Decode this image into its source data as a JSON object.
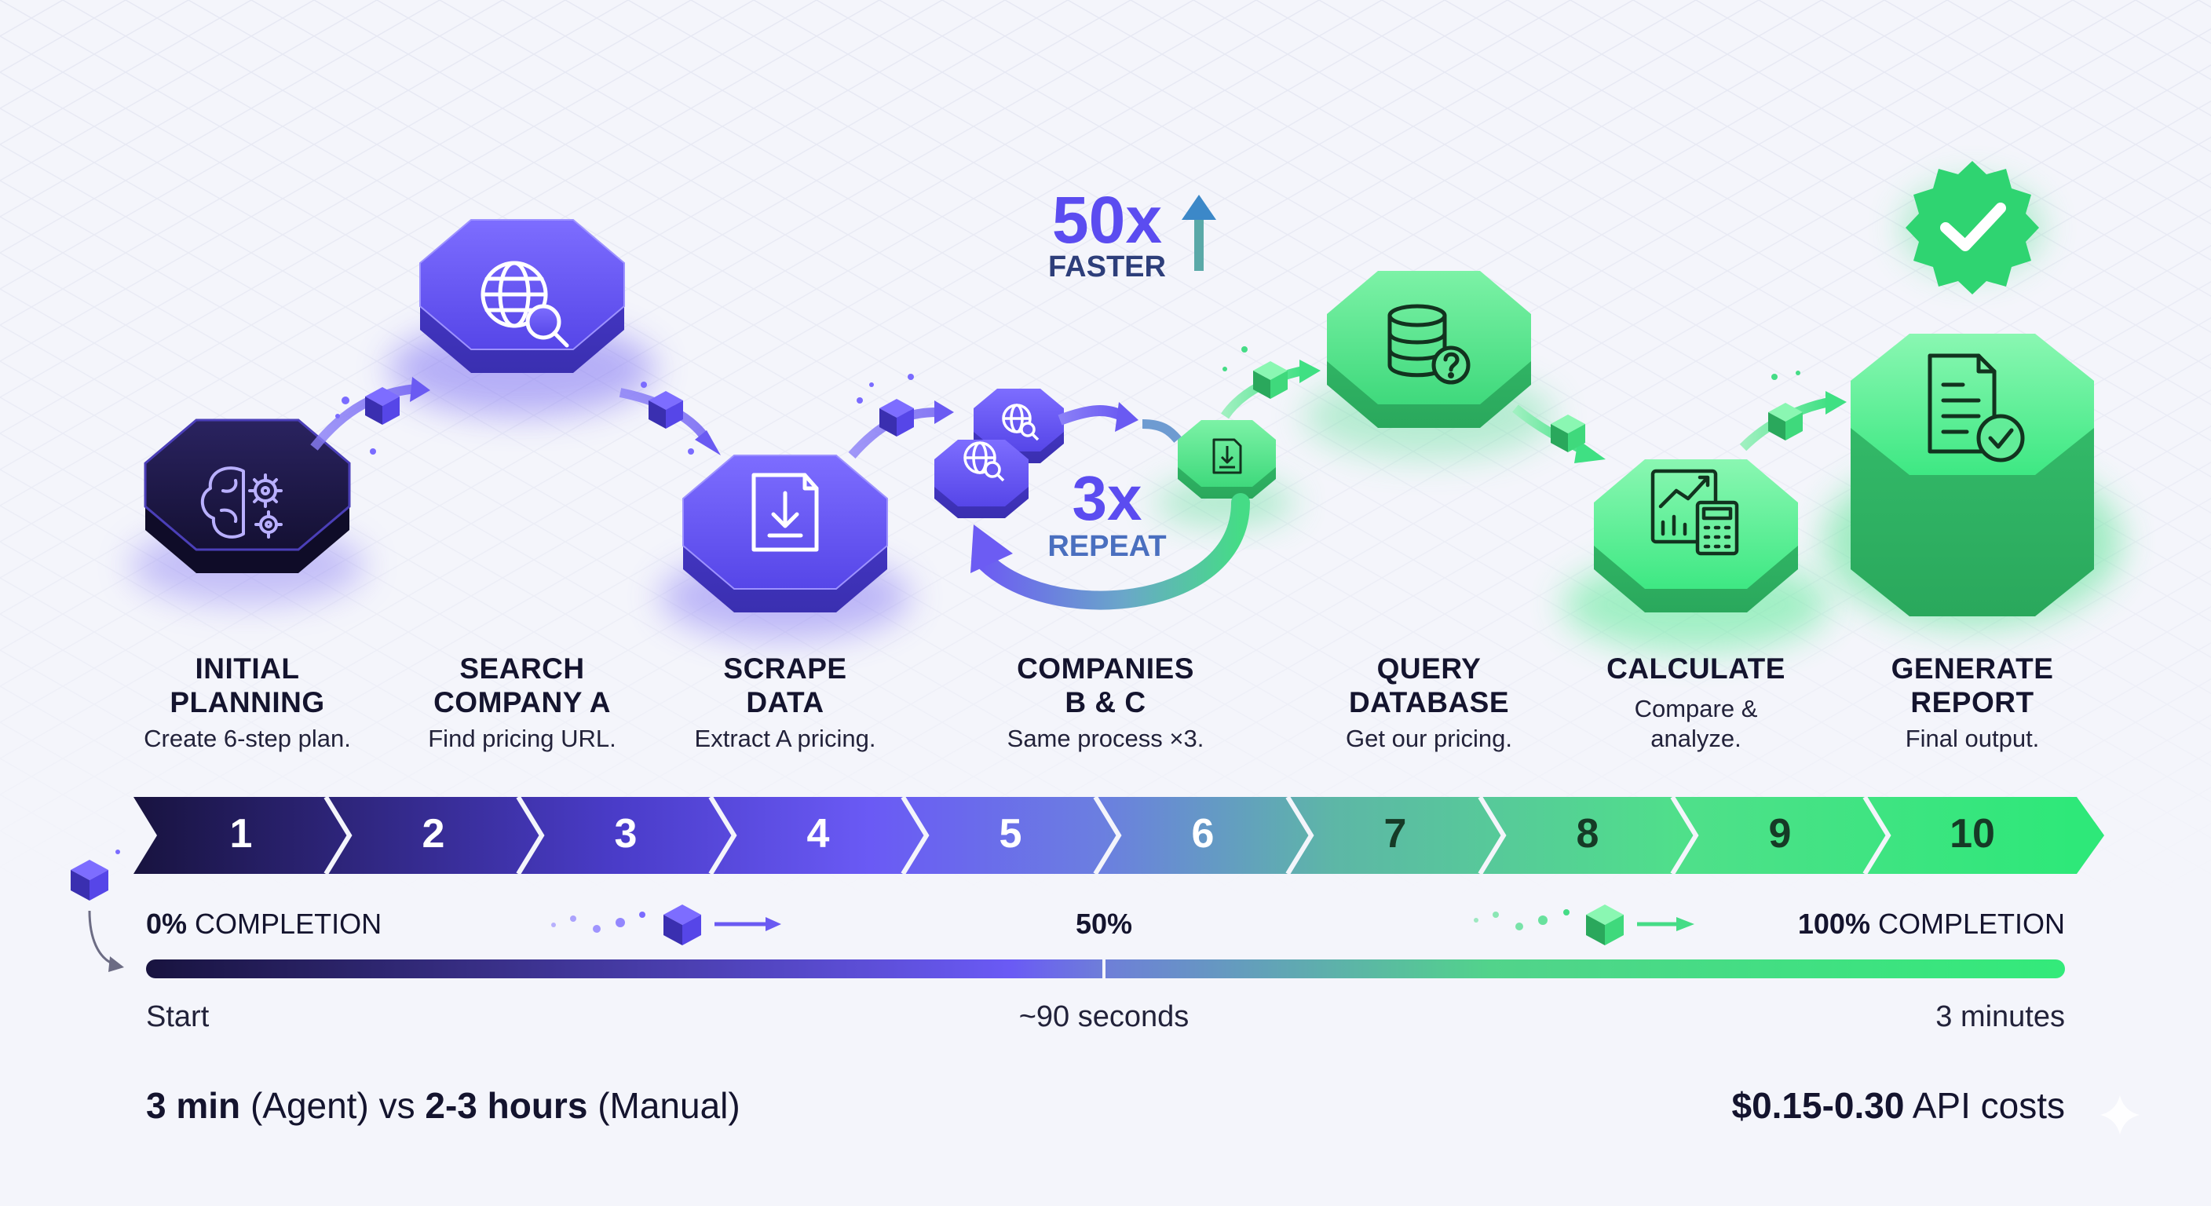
{
  "speedup": {
    "value": "50x",
    "label": "FASTER"
  },
  "repeat": {
    "value": "3x",
    "label": "REPEAT"
  },
  "steps": [
    {
      "title_line1": "INITIAL",
      "title_line2": "PLANNING",
      "subtitle": "Create 6-step plan.",
      "icon": "brain-gears-icon",
      "color": "#1e1848"
    },
    {
      "title_line1": "SEARCH",
      "title_line2": "COMPANY A",
      "subtitle": "Find pricing URL.",
      "icon": "globe-search-icon",
      "color": "#5b4cf0"
    },
    {
      "title_line1": "SCRAPE",
      "title_line2": "DATA",
      "subtitle": "Extract A pricing.",
      "icon": "file-download-icon",
      "color": "#6a5af7"
    },
    {
      "title_line1": "COMPANIES",
      "title_line2": "B & C",
      "subtitle": "Same process ×3.",
      "icon": "globe-search-icon",
      "color": "#5a58ee"
    },
    {
      "title_line1": "QUERY",
      "title_line2": "DATABASE",
      "subtitle": "Get our pricing.",
      "icon": "database-question-icon",
      "color": "#4fd27f"
    },
    {
      "title_line1": "CALCULATE",
      "title_line2": "",
      "subtitle_line1": "Compare &",
      "subtitle_line2": "analyze.",
      "icon": "calculator-chart-icon",
      "color": "#3ee07d"
    },
    {
      "title_line1": "GENERATE",
      "title_line2": "REPORT",
      "subtitle": "Final output.",
      "icon": "report-check-icon",
      "color": "#2ee478"
    }
  ],
  "timeline": [
    "1",
    "2",
    "3",
    "4",
    "5",
    "6",
    "7",
    "8",
    "9",
    "10"
  ],
  "progress": {
    "start_pct": "0%",
    "start_word": "COMPLETION",
    "mid_pct": "50%",
    "end_pct": "100%",
    "end_word": "COMPLETION",
    "time_start": "Start",
    "time_mid": "~90 seconds",
    "time_end": "3 minutes",
    "value": 1.0
  },
  "footer": {
    "agent_time": "3 min",
    "agent_word": "(Agent)",
    "vs": "vs",
    "manual_time": "2-3 hours",
    "manual_word": "(Manual)",
    "cost": "$0.15-0.30",
    "cost_word": "API costs"
  },
  "colors": {
    "navy": "#1a1540",
    "purple": "#5b4cf0",
    "violet": "#7a6bff",
    "teal": "#5aa9a8",
    "green": "#33e07a",
    "check_green": "#35d97a"
  }
}
